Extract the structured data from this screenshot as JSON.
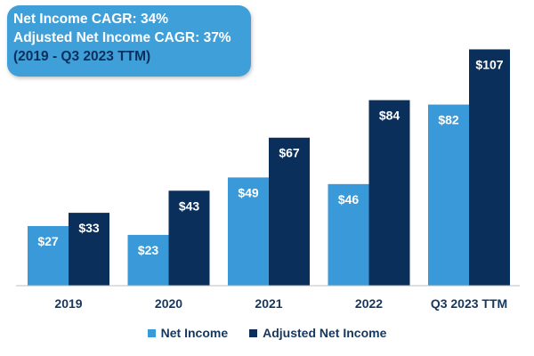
{
  "callout": {
    "line1": "Net Income CAGR: 34%",
    "line2": "Adjusted Net Income CAGR: 37%",
    "line3": "(2019 - Q3 2023 TTM)",
    "background": "#3f9fd9",
    "period_color": "#0b2f5b"
  },
  "chart_data": {
    "type": "bar",
    "categories": [
      "2019",
      "2020",
      "2021",
      "2022",
      "Q3 2023 TTM"
    ],
    "series": [
      {
        "name": "Net Income",
        "values": [
          27,
          23,
          49,
          46,
          82
        ],
        "labels": [
          "$27",
          "$23",
          "$49",
          "$46",
          "$82"
        ],
        "color": "#3a9ad9"
      },
      {
        "name": "Adjusted Net Income",
        "values": [
          33,
          43,
          67,
          84,
          107
        ],
        "labels": [
          "$33",
          "$43",
          "$67",
          "$84",
          "$107"
        ],
        "color": "#0b2f5b"
      }
    ],
    "title": "",
    "xlabel": "",
    "ylabel": "",
    "ylim": [
      0,
      110
    ],
    "grid": false,
    "legend_position": "bottom"
  }
}
